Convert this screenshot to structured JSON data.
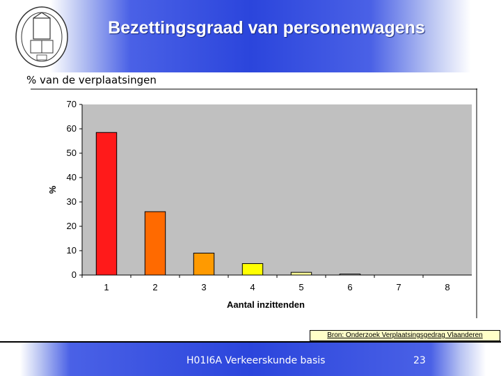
{
  "slide": {
    "title": "Bezettingsgraad van personenwagens",
    "subtitle": "%  van de verplaatsingen",
    "source": "Bron: Onderzoek Verplaatsingsgedrag Vlaanderen",
    "footer_course": "H01I6A Verkeerskunde basis",
    "page_number": "23",
    "logo_icon": "university-seal-icon"
  },
  "chart_data": {
    "type": "bar",
    "categories": [
      "1",
      "2",
      "3",
      "4",
      "5",
      "6",
      "7",
      "8"
    ],
    "values": [
      58.5,
      26,
      9,
      4.7,
      1.1,
      0.4,
      0,
      0
    ],
    "colors": [
      "#ff1a1a",
      "#ff6a00",
      "#ff9a00",
      "#ffff00",
      "#ffff99",
      "#ffffff",
      "#ffffff",
      "#ffffff"
    ],
    "xlabel": "Aantal inzittenden",
    "ylabel": "%",
    "ylim": [
      0,
      70
    ],
    "yticks": [
      "0",
      "10",
      "20",
      "30",
      "40",
      "50",
      "60",
      "70"
    ],
    "grid": false,
    "plot_background": "#c0c0c0"
  }
}
